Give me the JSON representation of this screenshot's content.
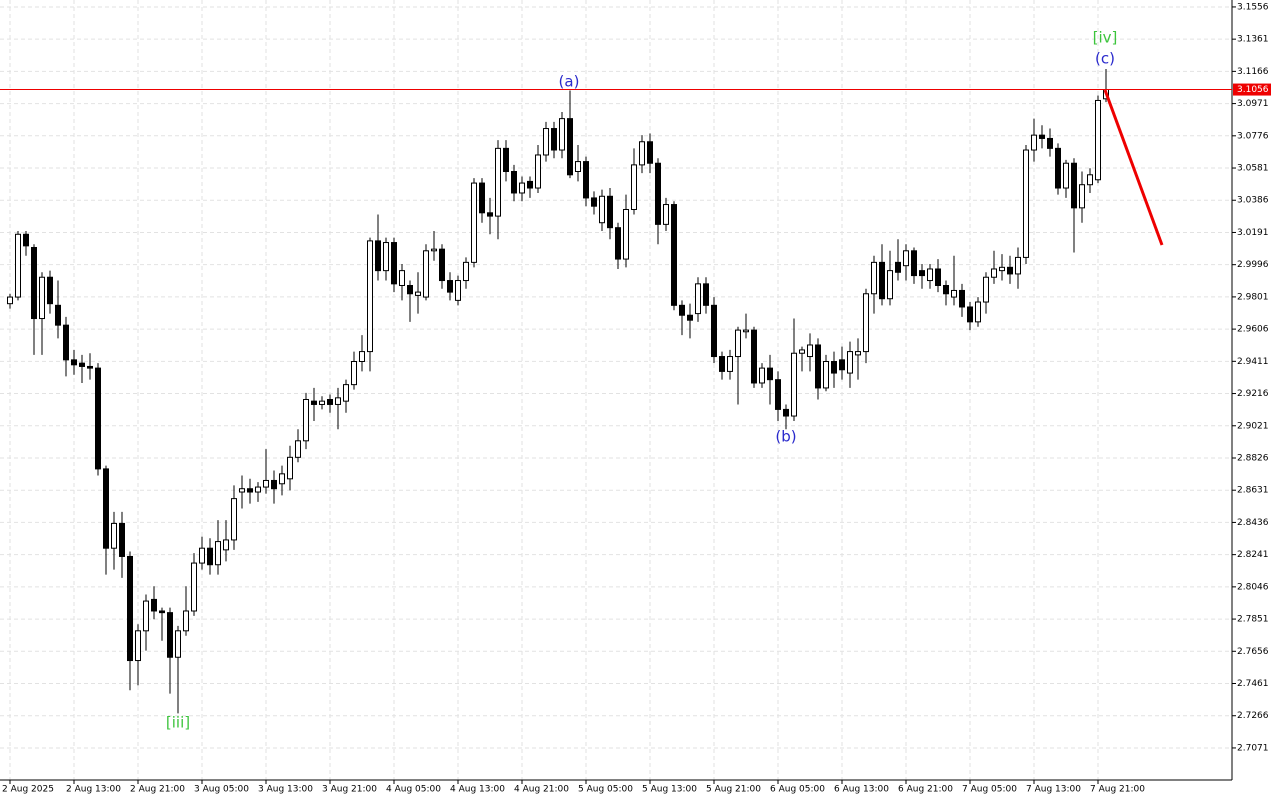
{
  "chart_data": {
    "type": "candlestick",
    "categories": [
      "2 Aug 2025",
      null,
      null,
      null,
      null,
      null,
      null,
      null,
      "2 Aug 13:00",
      null,
      null,
      null,
      null,
      null,
      null,
      null,
      "2 Aug 21:00",
      null,
      null,
      null,
      null,
      null,
      null,
      null,
      "3 Aug 05:00",
      null,
      null,
      null,
      null,
      null,
      null,
      null,
      "3 Aug 13:00",
      null,
      null,
      null,
      null,
      null,
      null,
      null,
      "3 Aug 21:00",
      null,
      null,
      null,
      null,
      null,
      null,
      null,
      "4 Aug 05:00",
      null,
      null,
      null,
      null,
      null,
      null,
      null,
      "4 Aug 13:00",
      null,
      null,
      null,
      null,
      null,
      null,
      null,
      "4 Aug 21:00",
      null,
      null,
      null,
      null,
      null,
      null,
      null,
      "5 Aug 05:00",
      null,
      null,
      null,
      null,
      null,
      null,
      null,
      "5 Aug 13:00",
      null,
      null,
      null,
      null,
      null,
      null,
      null,
      "5 Aug 21:00",
      null,
      null,
      null,
      null,
      null,
      null,
      null,
      "6 Aug 05:00",
      null,
      null,
      null,
      null,
      null,
      null,
      null,
      "6 Aug 13:00",
      null,
      null,
      null,
      null,
      null,
      null,
      null,
      "6 Aug 21:00",
      null,
      null,
      null,
      null,
      null,
      null,
      null,
      "7 Aug 05:00",
      null,
      null,
      null,
      null,
      null,
      null,
      null,
      "7 Aug 13:00",
      null,
      null,
      null,
      null,
      null,
      null,
      null,
      "7 Aug 21:00",
      null
    ],
    "open": [
      2.976,
      2.98,
      3.018,
      3.01,
      2.967,
      2.992,
      2.975,
      2.963,
      2.942,
      2.94,
      2.938,
      2.937,
      2.876,
      2.828,
      2.843,
      2.823,
      2.76,
      2.778,
      2.797,
      2.79,
      2.789,
      2.762,
      2.778,
      2.79,
      2.819,
      2.828,
      2.818,
      2.827,
      2.833,
      2.862,
      2.864,
      2.862,
      2.865,
      2.869,
      2.867,
      2.87,
      2.883,
      2.893,
      2.917,
      2.915,
      2.918,
      2.915,
      2.917,
      2.927,
      2.941,
      2.947,
      3.014,
      2.996,
      3.013,
      2.987,
      2.987,
      2.981,
      2.98,
      3.008,
      3.009,
      2.99,
      2.978,
      2.99,
      3.001,
      3.049,
      3.031,
      3.029,
      3.07,
      3.056,
      3.043,
      3.05,
      3.046,
      3.066,
      3.082,
      3.069,
      3.088,
      3.056,
      3.062,
      3.04,
      3.025,
      3.041,
      3.022,
      3.003,
      3.033,
      3.06,
      3.074,
      3.061,
      3.024,
      3.036,
      2.975,
      2.969,
      2.97,
      2.988,
      2.975,
      2.944,
      2.935,
      2.944,
      2.959,
      2.96,
      2.928,
      2.937,
      2.93,
      2.912,
      2.908,
      2.946,
      2.944,
      2.951,
      2.925,
      2.941,
      2.942,
      2.934,
      2.945,
      2.947,
      2.982,
      3.001,
      2.979,
      3.001,
      2.999,
      3.008,
      2.996,
      2.99,
      2.997,
      2.987,
      2.98,
      2.984,
      2.974,
      2.965,
      2.977,
      2.992,
      2.996,
      2.998,
      2.994,
      3.004,
      3.069,
      3.078,
      3.076,
      3.07,
      3.046,
      3.061,
      3.034,
      3.048,
      3.051,
      3.1
    ],
    "close": [
      2.98,
      3.018,
      3.011,
      2.967,
      2.992,
      2.976,
      2.963,
      2.942,
      2.939,
      2.938,
      2.937,
      2.876,
      2.828,
      2.843,
      2.823,
      2.76,
      2.778,
      2.796,
      2.79,
      2.789,
      2.762,
      2.778,
      2.79,
      2.819,
      2.828,
      2.818,
      2.832,
      2.833,
      2.858,
      2.864,
      2.862,
      2.865,
      2.869,
      2.864,
      2.873,
      2.883,
      2.893,
      2.918,
      2.915,
      2.917,
      2.915,
      2.919,
      2.927,
      2.941,
      2.947,
      3.014,
      2.996,
      3.013,
      2.988,
      2.996,
      2.982,
      2.983,
      3.008,
      3.009,
      2.99,
      2.983,
      2.99,
      3.001,
      3.049,
      3.031,
      3.029,
      3.07,
      3.056,
      3.043,
      3.049,
      3.046,
      3.066,
      3.082,
      3.069,
      3.088,
      3.054,
      3.062,
      3.04,
      3.035,
      3.041,
      3.022,
      3.003,
      3.033,
      3.06,
      3.074,
      3.061,
      3.024,
      3.036,
      2.975,
      2.969,
      2.966,
      2.988,
      2.975,
      2.944,
      2.935,
      2.944,
      2.96,
      2.96,
      2.928,
      2.937,
      2.93,
      2.912,
      2.908,
      2.946,
      2.948,
      2.951,
      2.925,
      2.941,
      2.934,
      2.936,
      2.947,
      2.947,
      2.982,
      3.001,
      2.979,
      2.996,
      2.995,
      3.008,
      2.993,
      2.993,
      2.997,
      2.987,
      2.982,
      2.984,
      2.974,
      2.965,
      2.977,
      2.992,
      2.997,
      2.998,
      2.994,
      3.004,
      3.069,
      3.078,
      3.076,
      3.07,
      3.046,
      3.061,
      3.034,
      3.048,
      3.054,
      3.099,
      3.1056
    ],
    "high": [
      2.982,
      3.02,
      3.02,
      3.012,
      2.995,
      2.996,
      2.99,
      2.968,
      2.948,
      2.945,
      2.946,
      2.94,
      2.878,
      2.85,
      2.85,
      2.826,
      2.782,
      2.8,
      2.805,
      2.792,
      2.792,
      2.781,
      2.805,
      2.825,
      2.835,
      2.834,
      2.845,
      2.845,
      2.866,
      2.872,
      2.87,
      2.868,
      2.888,
      2.875,
      2.878,
      2.89,
      2.9,
      2.922,
      2.925,
      2.92,
      2.921,
      2.925,
      2.93,
      2.947,
      2.957,
      3.016,
      3.03,
      3.016,
      3.016,
      3.0,
      2.99,
      2.995,
      3.012,
      3.02,
      3.012,
      2.995,
      2.993,
      3.004,
      3.052,
      3.052,
      3.04,
      3.075,
      3.075,
      3.06,
      3.053,
      3.053,
      3.072,
      3.086,
      3.086,
      3.092,
      3.105,
      3.072,
      3.065,
      3.044,
      3.045,
      3.046,
      3.025,
      3.042,
      3.07,
      3.078,
      3.079,
      3.064,
      3.04,
      3.038,
      2.978,
      2.976,
      2.992,
      2.992,
      2.98,
      2.947,
      2.948,
      2.962,
      2.97,
      2.962,
      2.94,
      2.945,
      2.935,
      2.915,
      2.967,
      2.95,
      2.958,
      2.955,
      2.945,
      2.947,
      2.95,
      2.953,
      2.955,
      2.985,
      3.005,
      3.012,
      3.008,
      3.015,
      3.012,
      3.01,
      3.0,
      3.0,
      3.003,
      2.99,
      3.005,
      2.988,
      2.977,
      2.98,
      2.995,
      3.008,
      3.006,
      3.005,
      3.01,
      3.072,
      3.088,
      3.084,
      3.082,
      3.073,
      3.063,
      3.064,
      3.056,
      3.058,
      3.102,
      3.118
    ],
    "low": [
      2.973,
      2.978,
      3.005,
      2.945,
      2.945,
      2.97,
      2.955,
      2.932,
      2.933,
      2.928,
      2.93,
      2.872,
      2.812,
      2.815,
      2.81,
      2.742,
      2.745,
      2.766,
      2.785,
      2.772,
      2.74,
      2.728,
      2.775,
      2.787,
      2.815,
      2.812,
      2.812,
      2.82,
      2.827,
      2.852,
      2.855,
      2.856,
      2.861,
      2.855,
      2.86,
      2.863,
      2.88,
      2.888,
      2.905,
      2.912,
      2.91,
      2.9,
      2.91,
      2.924,
      2.935,
      2.935,
      2.99,
      2.99,
      2.983,
      2.978,
      2.965,
      2.97,
      2.978,
      3.002,
      2.985,
      2.978,
      2.975,
      2.985,
      2.998,
      3.025,
      3.018,
      3.015,
      3.05,
      3.038,
      3.038,
      3.04,
      3.043,
      3.062,
      3.064,
      3.064,
      3.052,
      3.05,
      3.035,
      3.03,
      3.02,
      3.015,
      2.997,
      2.998,
      3.03,
      3.055,
      3.055,
      3.012,
      3.02,
      2.972,
      2.957,
      2.955,
      2.965,
      2.97,
      2.94,
      2.93,
      2.93,
      2.915,
      2.955,
      2.925,
      2.925,
      2.915,
      2.905,
      2.9,
      2.905,
      2.935,
      2.935,
      2.918,
      2.923,
      2.925,
      2.93,
      2.925,
      2.93,
      2.94,
      2.97,
      2.975,
      2.975,
      2.99,
      2.99,
      2.988,
      2.985,
      2.985,
      2.983,
      2.975,
      2.975,
      2.968,
      2.96,
      2.962,
      2.97,
      2.988,
      2.99,
      2.988,
      2.985,
      3.0,
      3.062,
      3.07,
      3.065,
      3.042,
      3.04,
      3.007,
      3.025,
      3.043,
      3.049,
      3.098
    ],
    "ylim": [
      2.6877,
      3.1598
    ],
    "yticks": [
      3.1556,
      3.1361,
      3.1166,
      3.0971,
      3.0776,
      3.0581,
      3.0386,
      3.0191,
      2.9996,
      2.9801,
      2.9606,
      2.9411,
      2.9216,
      2.9021,
      2.8826,
      2.8631,
      2.8436,
      2.8241,
      2.8046,
      2.7851,
      2.7656,
      2.7461,
      2.7266,
      2.7071
    ],
    "price_line": 3.1056,
    "grid": true,
    "annotations": [
      "(a)",
      "(b)",
      "(c)",
      "[iv]",
      "[iii]"
    ]
  }
}
